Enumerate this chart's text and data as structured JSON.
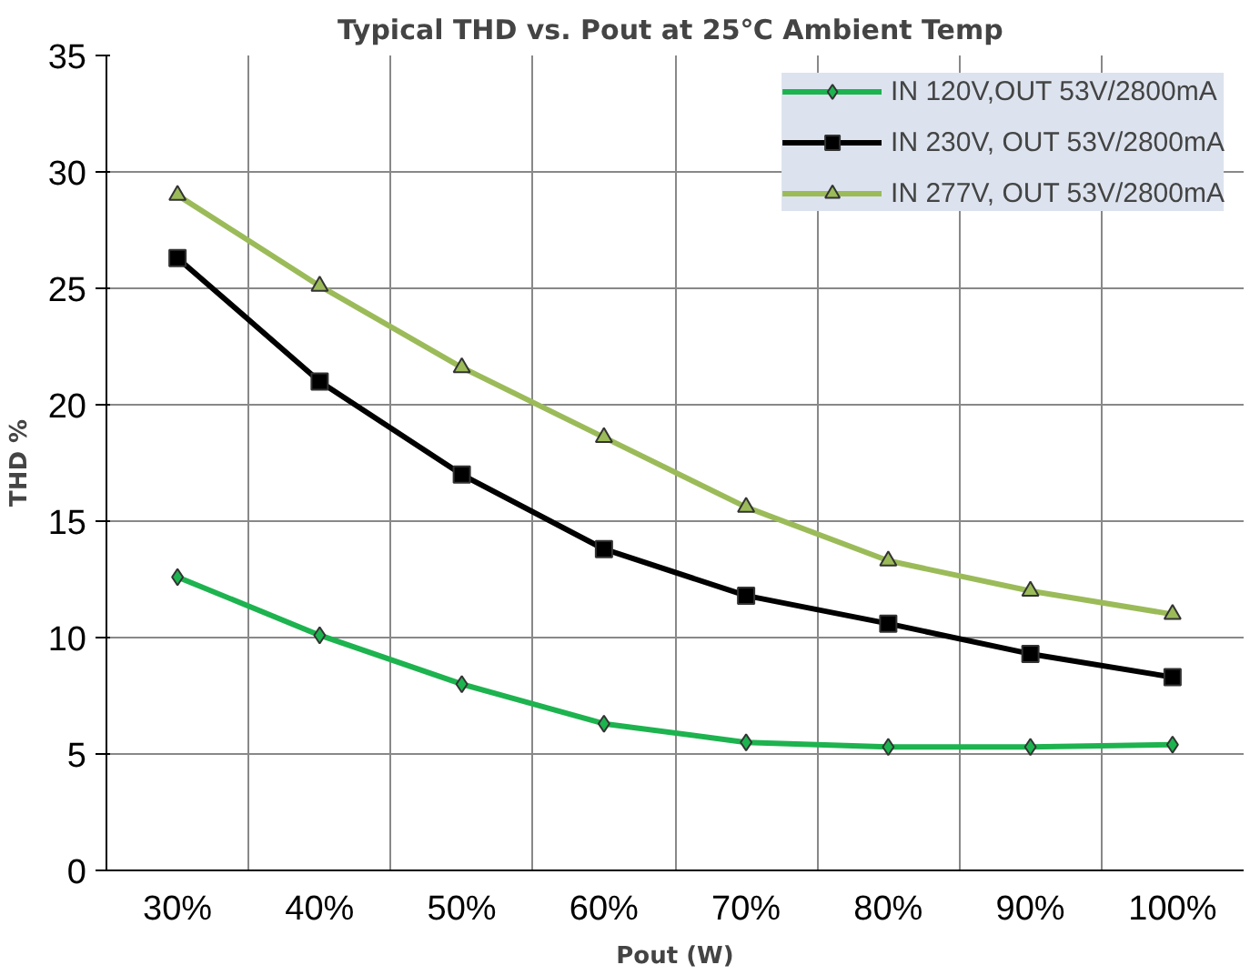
{
  "chart_data": {
    "type": "line",
    "title": "Typical THD vs. Pout at 25℃  Ambient Temp",
    "xlabel": "Pout (W)",
    "ylabel": "THD %",
    "categories": [
      "30%",
      "40%",
      "50%",
      "60%",
      "70%",
      "80%",
      "90%",
      "100%"
    ],
    "series": [
      {
        "name": "IN 120V,OUT 53V/2800mA",
        "color": "#1db34f",
        "marker": "diamond",
        "values": [
          12.6,
          10.1,
          8.0,
          6.3,
          5.5,
          5.3,
          5.3,
          5.4
        ]
      },
      {
        "name": "IN 230V, OUT 53V/2800mA",
        "color": "#000000",
        "marker": "square",
        "values": [
          26.3,
          21.0,
          17.0,
          13.8,
          11.8,
          10.6,
          9.3,
          8.3
        ]
      },
      {
        "name": "IN 277V, OUT 53V/2800mA",
        "color": "#9bbb59",
        "marker": "triangle",
        "values": [
          29.0,
          25.1,
          21.6,
          18.6,
          15.6,
          13.3,
          12.0,
          11.0
        ]
      }
    ],
    "ylim": [
      0,
      35
    ],
    "yticks": [
      0,
      5,
      10,
      15,
      20,
      25,
      30,
      35
    ],
    "grid": true,
    "legend": "top right"
  }
}
